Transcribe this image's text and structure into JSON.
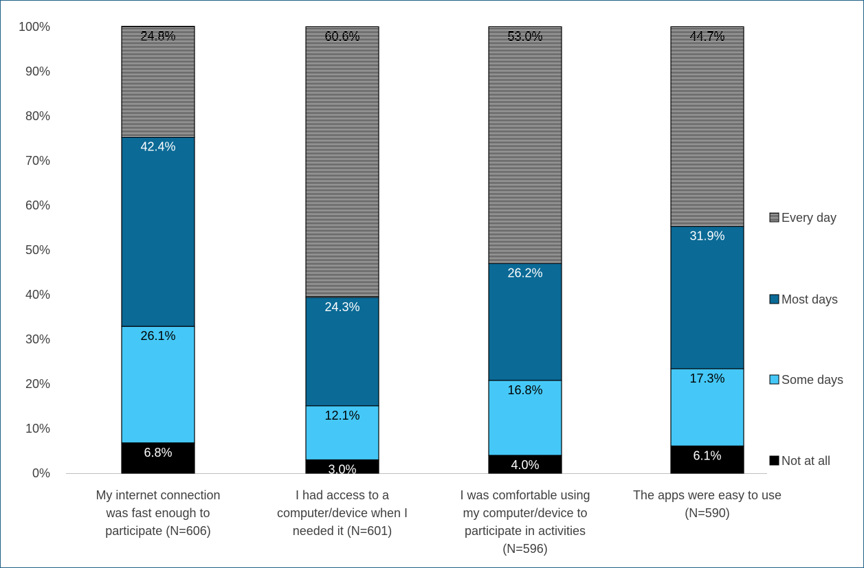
{
  "chart_data": {
    "type": "bar",
    "stacked": true,
    "normalized": true,
    "title": "",
    "xlabel": "",
    "ylabel": "",
    "ylim": [
      0,
      100
    ],
    "yticks": [
      "0%",
      "10%",
      "20%",
      "30%",
      "40%",
      "50%",
      "60%",
      "70%",
      "80%",
      "90%",
      "100%"
    ],
    "grid": false,
    "legend_position": "right",
    "categories": [
      [
        "My internet connection",
        "was fast enough to",
        "participate (N=606)"
      ],
      [
        "I had access to a",
        "computer/device when I",
        "needed it (N=601)"
      ],
      [
        "I was comfortable using",
        "my computer/device to",
        "participate in activities",
        "(N=596)"
      ],
      [
        "The apps were easy to use",
        "(N=590)"
      ]
    ],
    "series": [
      {
        "name": "Not at all",
        "values": [
          6.8,
          3.0,
          4.0,
          6.1
        ],
        "labels": [
          "6.8%",
          "3.0%",
          "4.0%",
          "6.1%"
        ],
        "color": "#000000",
        "label_color": "#ffffff"
      },
      {
        "name": "Some days",
        "values": [
          26.1,
          12.1,
          16.8,
          17.3
        ],
        "labels": [
          "26.1%",
          "12.1%",
          "16.8%",
          "17.3%"
        ],
        "color": "#45c8f7",
        "label_color": "#000000"
      },
      {
        "name": "Most days",
        "values": [
          42.4,
          24.3,
          26.2,
          31.9
        ],
        "labels": [
          "42.4%",
          "24.3%",
          "26.2%",
          "31.9%"
        ],
        "color": "#0b6a96",
        "label_color": "#ffffff"
      },
      {
        "name": "Every day",
        "values": [
          24.8,
          60.6,
          53.0,
          44.7
        ],
        "labels": [
          "24.8%",
          "60.6%",
          "53.0%",
          "44.7%"
        ],
        "color": "#ffffff",
        "pattern": "horizontal-lines",
        "label_color": "#000000"
      }
    ]
  }
}
